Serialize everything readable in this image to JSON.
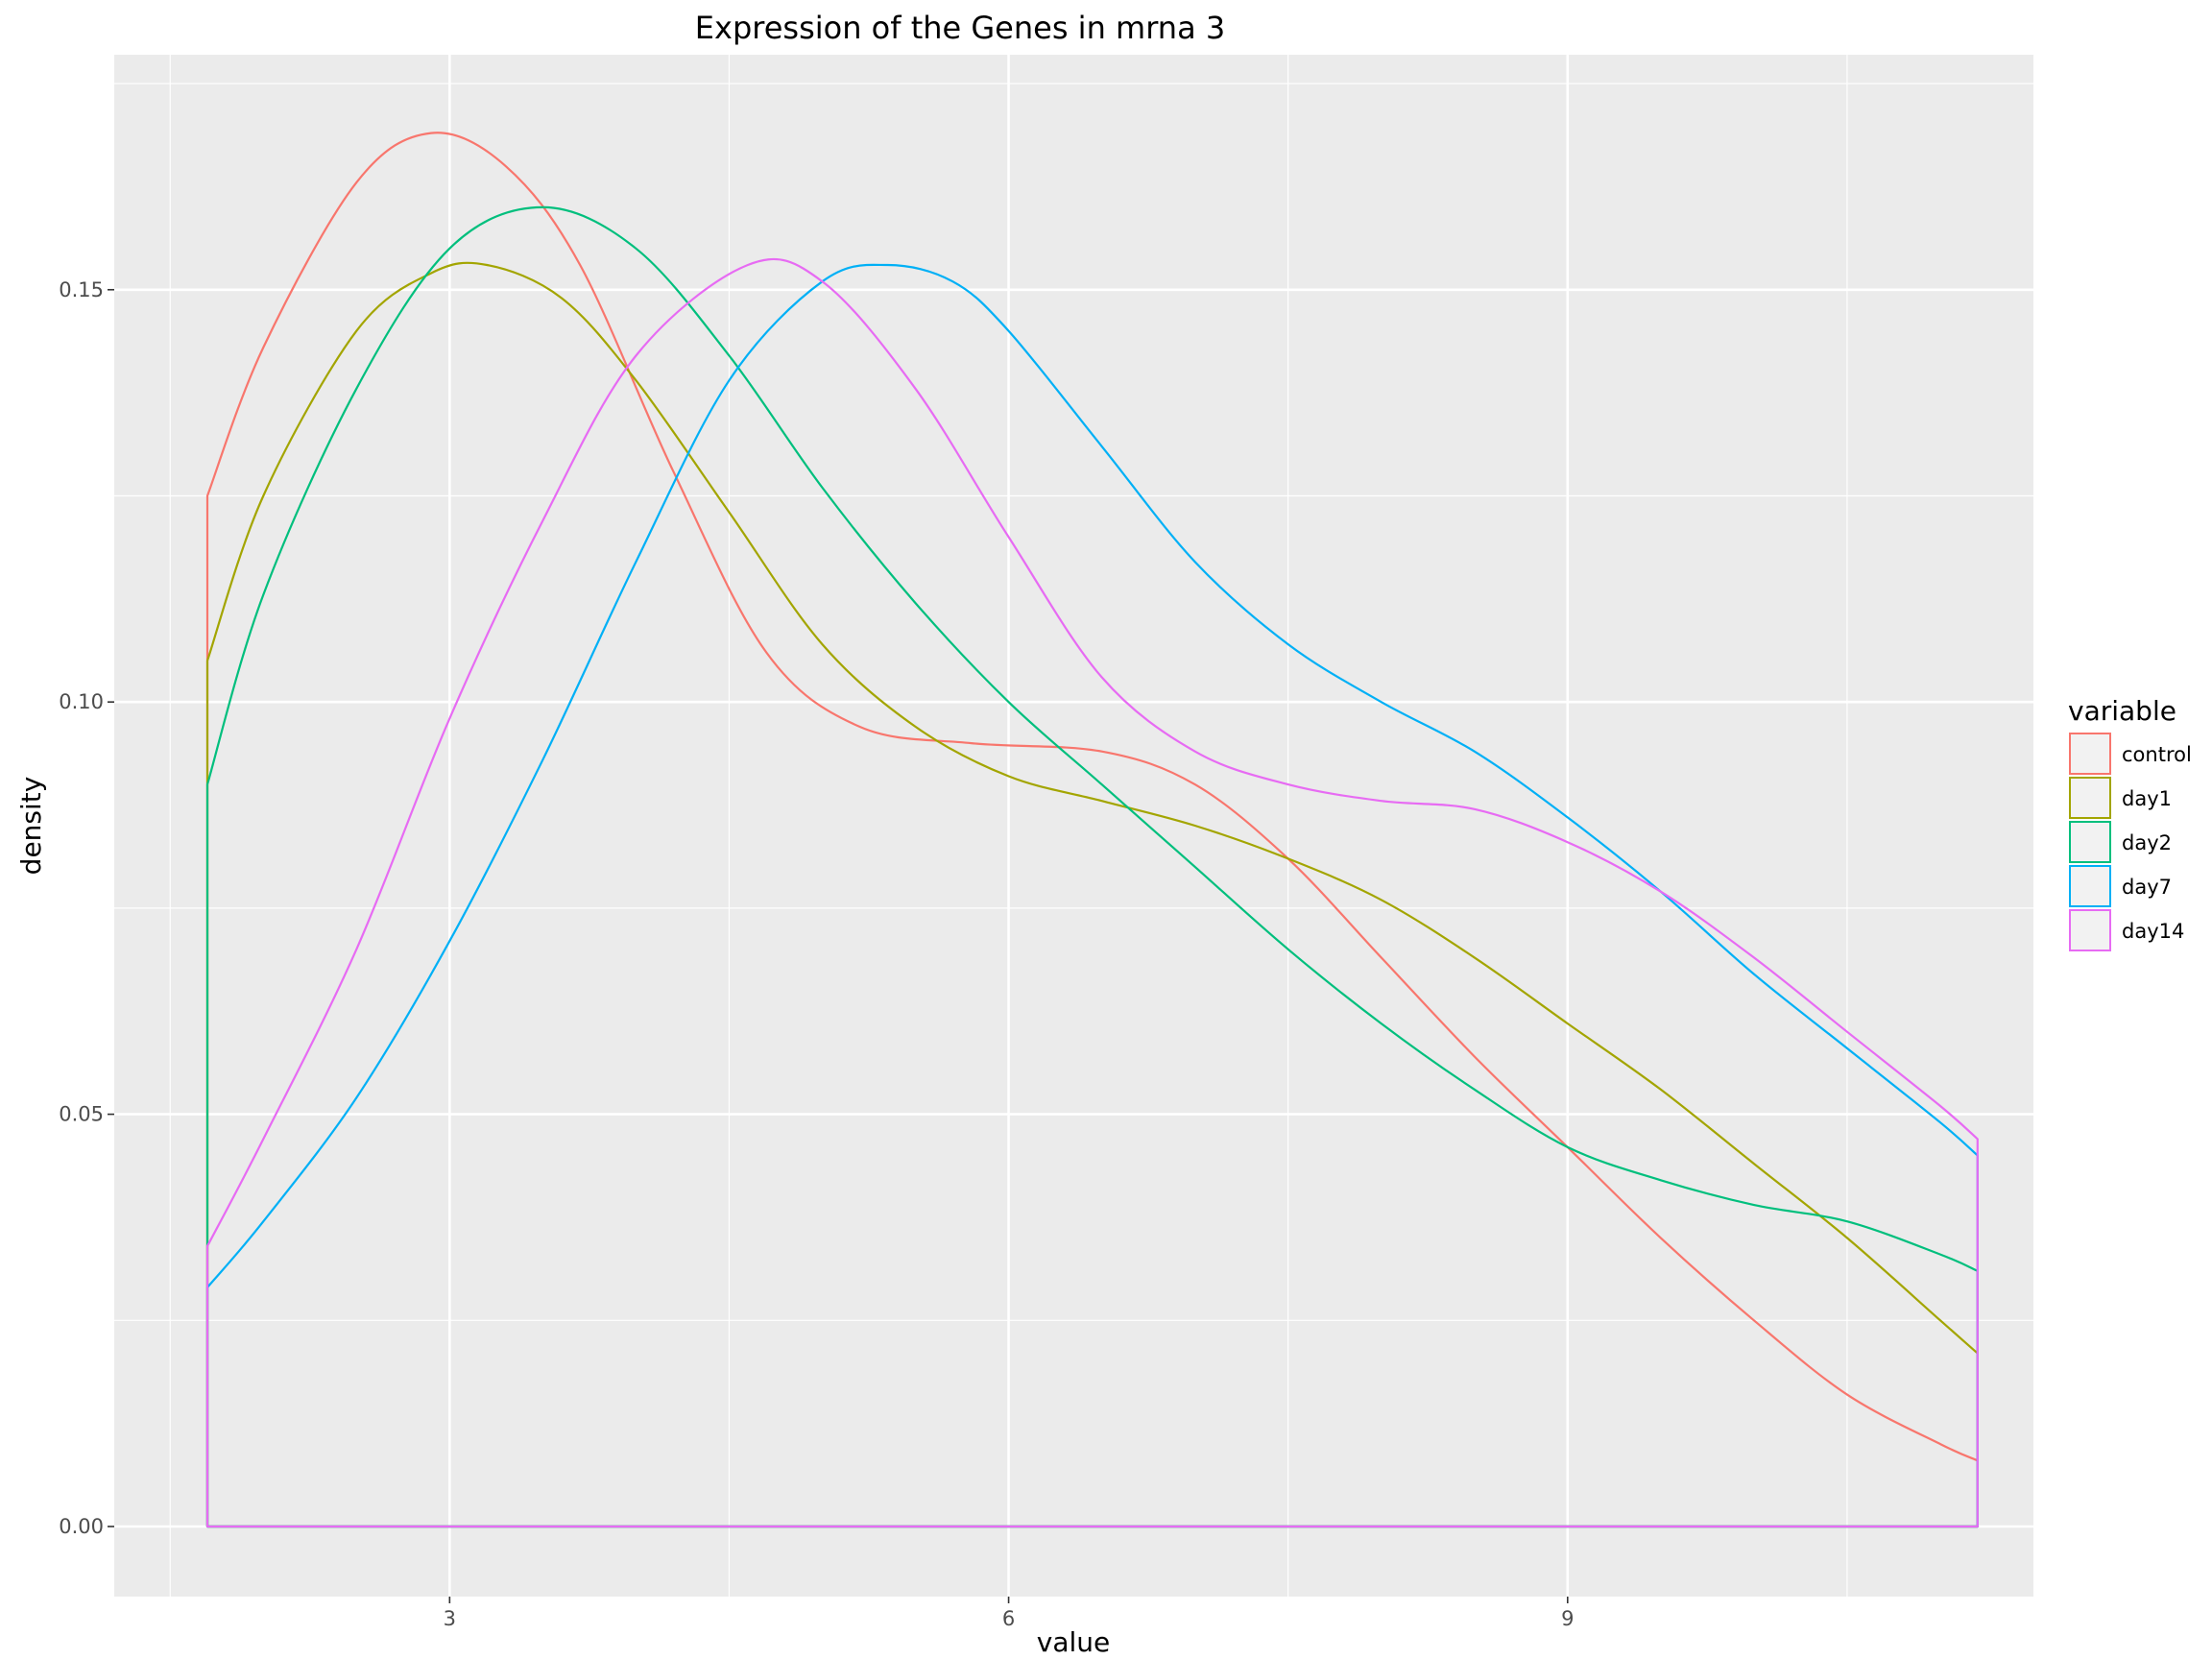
{
  "chart_data": {
    "type": "line",
    "title": "Expression of the Genes in mrna 3",
    "xlabel": "value",
    "ylabel": "density",
    "xlim": [
      1.2,
      11.5
    ],
    "ylim": [
      -0.0085,
      0.1785
    ],
    "x_ticks": [
      3,
      6,
      9
    ],
    "x_tick_labels": [
      "3",
      "6",
      "9"
    ],
    "y_ticks": [
      0.0,
      0.05,
      0.1,
      0.15
    ],
    "y_tick_labels": [
      "0.00",
      "0.05",
      "0.10",
      "0.15"
    ],
    "grid": true,
    "legend_title": "variable",
    "legend_position": "right",
    "series": [
      {
        "name": "control",
        "color": "#F8766D",
        "x": [
          1.7,
          2.0,
          2.5,
          2.9,
          3.3,
          3.7,
          4.2,
          4.7,
          5.2,
          5.8,
          6.5,
          7.0,
          7.5,
          8.0,
          8.5,
          9.0,
          9.5,
          10.0,
          10.5,
          11.0,
          11.2
        ],
        "y": [
          0.125,
          0.143,
          0.163,
          0.169,
          0.165,
          0.153,
          0.128,
          0.106,
          0.097,
          0.095,
          0.094,
          0.09,
          0.081,
          0.069,
          0.057,
          0.046,
          0.035,
          0.025,
          0.016,
          0.01,
          0.008
        ]
      },
      {
        "name": "day1",
        "color": "#A3A500",
        "x": [
          1.7,
          2.0,
          2.5,
          2.9,
          3.2,
          3.6,
          4.0,
          4.5,
          5.0,
          5.5,
          6.0,
          6.5,
          7.0,
          7.5,
          8.0,
          8.5,
          9.0,
          9.5,
          10.0,
          10.5,
          11.0,
          11.2
        ],
        "y": [
          0.105,
          0.125,
          0.145,
          0.152,
          0.153,
          0.149,
          0.139,
          0.123,
          0.107,
          0.097,
          0.091,
          0.088,
          0.085,
          0.081,
          0.076,
          0.069,
          0.061,
          0.053,
          0.044,
          0.035,
          0.025,
          0.021
        ]
      },
      {
        "name": "day2",
        "color": "#00BF7D",
        "x": [
          1.7,
          2.0,
          2.5,
          3.0,
          3.5,
          4.0,
          4.5,
          5.0,
          5.5,
          6.0,
          6.5,
          7.0,
          7.5,
          8.0,
          8.5,
          9.0,
          9.5,
          10.0,
          10.5,
          11.0,
          11.2
        ],
        "y": [
          0.09,
          0.113,
          0.138,
          0.155,
          0.16,
          0.155,
          0.142,
          0.126,
          0.112,
          0.1,
          0.09,
          0.08,
          0.07,
          0.061,
          0.053,
          0.046,
          0.042,
          0.039,
          0.037,
          0.033,
          0.031
        ]
      },
      {
        "name": "day7",
        "color": "#00B0F6",
        "x": [
          1.7,
          2.0,
          2.5,
          3.0,
          3.5,
          4.0,
          4.5,
          5.0,
          5.35,
          5.7,
          6.0,
          6.5,
          7.0,
          7.5,
          8.0,
          8.5,
          9.0,
          9.5,
          10.0,
          10.5,
          11.0,
          11.2
        ],
        "y": [
          0.029,
          0.037,
          0.052,
          0.071,
          0.093,
          0.117,
          0.139,
          0.151,
          0.153,
          0.151,
          0.145,
          0.131,
          0.117,
          0.107,
          0.1,
          0.094,
          0.086,
          0.077,
          0.067,
          0.058,
          0.049,
          0.045
        ]
      },
      {
        "name": "day14",
        "color": "#E76BF3",
        "x": [
          1.7,
          2.0,
          2.5,
          3.0,
          3.5,
          4.0,
          4.6,
          5.0,
          5.5,
          6.0,
          6.5,
          7.0,
          7.5,
          8.0,
          8.5,
          9.0,
          9.5,
          10.0,
          10.5,
          11.0,
          11.2
        ],
        "y": [
          0.034,
          0.047,
          0.07,
          0.098,
          0.122,
          0.142,
          0.153,
          0.151,
          0.138,
          0.12,
          0.103,
          0.094,
          0.09,
          0.088,
          0.087,
          0.083,
          0.077,
          0.069,
          0.06,
          0.051,
          0.047
        ]
      }
    ]
  }
}
